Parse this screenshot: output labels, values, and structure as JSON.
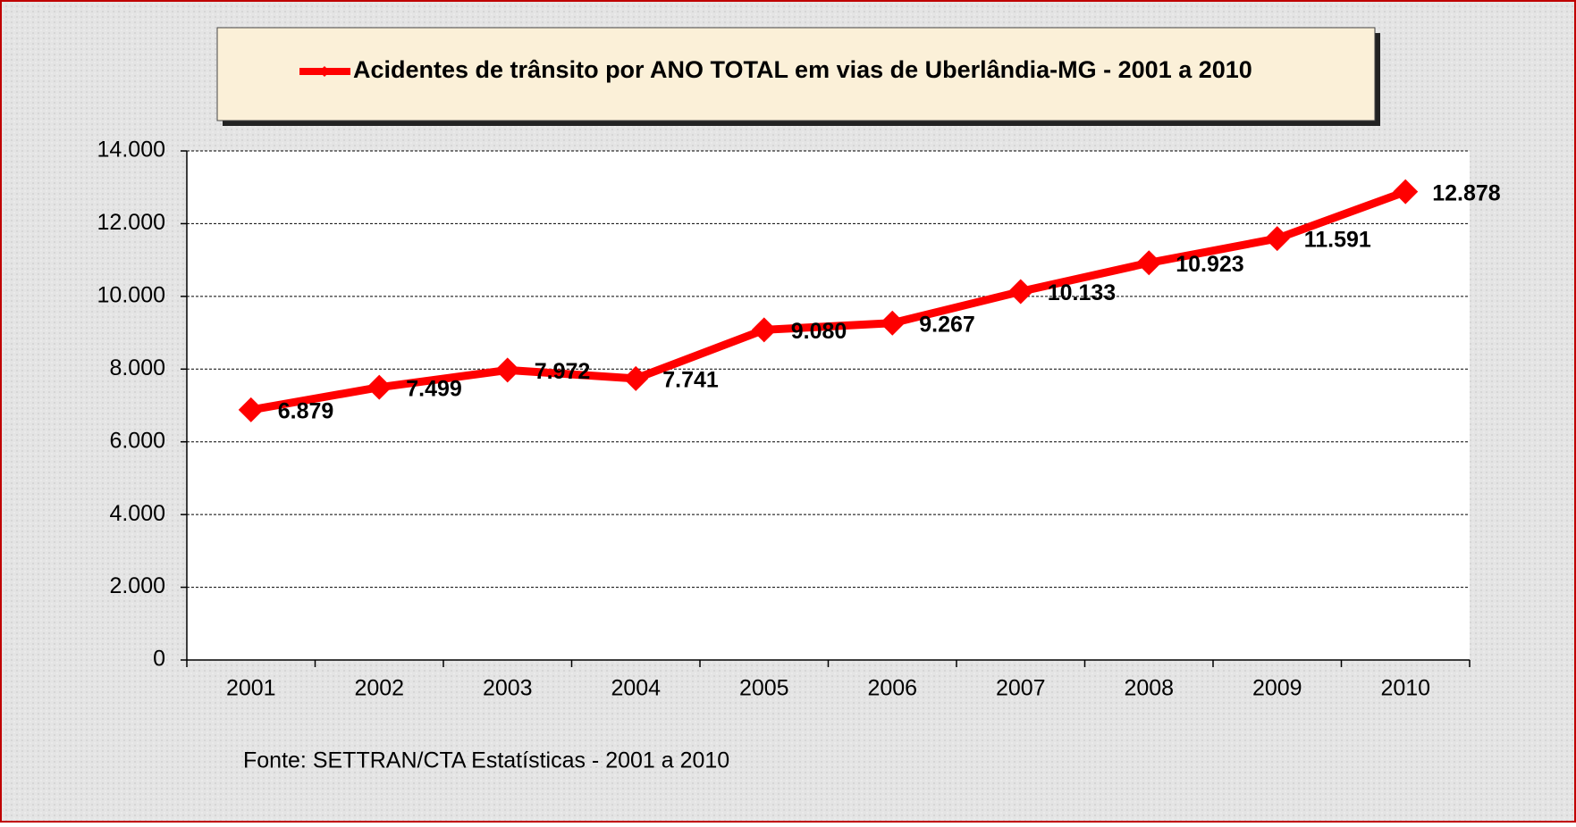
{
  "chart_data": {
    "type": "line",
    "source": "Fonte: SETTRAN/CTA  Estatísticas - 2001 a 2010",
    "categories": [
      "2001",
      "2002",
      "2003",
      "2004",
      "2005",
      "2006",
      "2007",
      "2008",
      "2009",
      "2010"
    ],
    "series": [
      {
        "name": "Acidentes de trânsito por ANO TOTAL em vias de Uberlândia-MG - 2001 a 2010",
        "color": "#ff0000",
        "values": [
          6879,
          7499,
          7972,
          7741,
          9080,
          9267,
          10133,
          10923,
          11591,
          12878
        ],
        "value_labels": [
          "6.879",
          "7.499",
          "7.972",
          "7.741",
          "9.080",
          "9.267",
          "10.133",
          "10.923",
          "11.591",
          "12.878"
        ]
      }
    ],
    "ylim": [
      0,
      14000
    ],
    "yticks": [
      0,
      {
        "value": 2000,
        "label": "2.000"
      },
      {
        "value": 4000,
        "label": "4.000"
      },
      {
        "value": 6000,
        "label": "6.000"
      },
      {
        "value": 8000,
        "label": "8.000"
      },
      {
        "value": 10000,
        "label": "10.000"
      },
      {
        "value": 12000,
        "label": "12.000"
      },
      {
        "value": 14000,
        "label": "14.000"
      }
    ],
    "grid": true
  }
}
